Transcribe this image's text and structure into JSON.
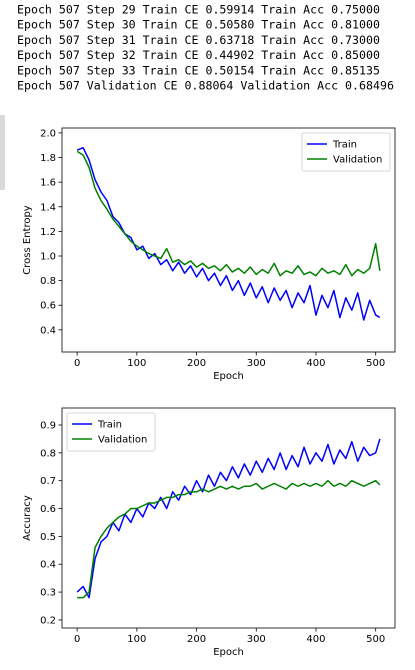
{
  "log_lines": [
    "Epoch 507 Step 29 Train CE 0.59914 Train Acc 0.75000",
    "Epoch 507 Step 30 Train CE 0.50580 Train Acc 0.81000",
    "Epoch 507 Step 31 Train CE 0.63718 Train Acc 0.73000",
    "Epoch 507 Step 32 Train CE 0.44902 Train Acc 0.85000",
    "Epoch 507 Step 33 Train CE 0.50154 Train Acc 0.85135",
    "Epoch 507 Validation CE 0.88064 Validation Acc 0.68496"
  ],
  "chart_data": [
    {
      "type": "line",
      "xlabel": "Epoch",
      "ylabel": "Cross Entropy",
      "legend": "upper right",
      "x": [
        0,
        10,
        20,
        30,
        40,
        50,
        60,
        70,
        80,
        90,
        100,
        110,
        120,
        130,
        140,
        150,
        160,
        170,
        180,
        190,
        200,
        210,
        220,
        230,
        240,
        250,
        260,
        270,
        280,
        290,
        300,
        310,
        320,
        330,
        340,
        350,
        360,
        370,
        380,
        390,
        400,
        410,
        420,
        430,
        440,
        450,
        460,
        470,
        480,
        490,
        500,
        507
      ],
      "series": [
        {
          "name": "Train",
          "color": "#0000ff",
          "values": [
            1.86,
            1.88,
            1.78,
            1.62,
            1.52,
            1.45,
            1.32,
            1.27,
            1.18,
            1.15,
            1.05,
            1.08,
            0.98,
            1.02,
            0.93,
            0.97,
            0.88,
            0.95,
            0.86,
            0.92,
            0.83,
            0.9,
            0.8,
            0.86,
            0.76,
            0.84,
            0.72,
            0.8,
            0.68,
            0.78,
            0.66,
            0.75,
            0.62,
            0.74,
            0.64,
            0.72,
            0.58,
            0.7,
            0.62,
            0.76,
            0.52,
            0.68,
            0.58,
            0.72,
            0.5,
            0.66,
            0.56,
            0.7,
            0.48,
            0.64,
            0.52,
            0.5
          ]
        },
        {
          "name": "Validation",
          "color": "#008000",
          "values": [
            1.85,
            1.82,
            1.72,
            1.55,
            1.45,
            1.38,
            1.3,
            1.24,
            1.18,
            1.12,
            1.08,
            1.05,
            1.02,
            1.0,
            0.98,
            1.06,
            0.95,
            0.97,
            0.93,
            0.96,
            0.91,
            0.94,
            0.9,
            0.92,
            0.88,
            0.93,
            0.87,
            0.9,
            0.86,
            0.91,
            0.85,
            0.89,
            0.86,
            0.94,
            0.84,
            0.88,
            0.86,
            0.92,
            0.85,
            0.87,
            0.84,
            0.9,
            0.86,
            0.88,
            0.85,
            0.93,
            0.84,
            0.89,
            0.86,
            0.9,
            1.1,
            0.88
          ]
        }
      ],
      "xlim": [
        -25.35,
        532.35
      ],
      "xticks": [
        0,
        100,
        200,
        300,
        400,
        500
      ],
      "ylim": [
        0.22,
        2.04
      ],
      "yticks": [
        0.4,
        0.6,
        0.8,
        {
          "value": 1.0,
          "label": "1.0"
        },
        1.2,
        1.4,
        1.6,
        1.8,
        {
          "value": 2.0,
          "label": "2.0"
        }
      ]
    },
    {
      "type": "line",
      "xlabel": "Epoch",
      "ylabel": "Accuracy",
      "legend": "upper left",
      "x": [
        0,
        10,
        20,
        30,
        40,
        50,
        60,
        70,
        80,
        90,
        100,
        110,
        120,
        130,
        140,
        150,
        160,
        170,
        180,
        190,
        200,
        210,
        220,
        230,
        240,
        250,
        260,
        270,
        280,
        290,
        300,
        310,
        320,
        330,
        340,
        350,
        360,
        370,
        380,
        390,
        400,
        410,
        420,
        430,
        440,
        450,
        460,
        470,
        480,
        490,
        500,
        507
      ],
      "series": [
        {
          "name": "Train",
          "color": "#0000ff",
          "values": [
            0.3,
            0.32,
            0.28,
            0.42,
            0.48,
            0.5,
            0.55,
            0.52,
            0.58,
            0.55,
            0.6,
            0.57,
            0.62,
            0.6,
            0.64,
            0.6,
            0.66,
            0.63,
            0.68,
            0.65,
            0.7,
            0.66,
            0.72,
            0.68,
            0.73,
            0.7,
            0.75,
            0.71,
            0.76,
            0.72,
            0.77,
            0.73,
            0.78,
            0.74,
            0.8,
            0.74,
            0.79,
            0.75,
            0.82,
            0.76,
            0.8,
            0.77,
            0.83,
            0.76,
            0.81,
            0.78,
            0.84,
            0.77,
            0.82,
            0.79,
            0.8,
            0.85
          ]
        },
        {
          "name": "Validation",
          "color": "#008000",
          "values": [
            0.28,
            0.28,
            0.3,
            0.46,
            0.5,
            0.53,
            0.55,
            0.57,
            0.58,
            0.6,
            0.6,
            0.61,
            0.62,
            0.62,
            0.63,
            0.64,
            0.64,
            0.65,
            0.65,
            0.66,
            0.66,
            0.67,
            0.66,
            0.67,
            0.68,
            0.67,
            0.68,
            0.67,
            0.68,
            0.68,
            0.69,
            0.67,
            0.68,
            0.69,
            0.68,
            0.67,
            0.69,
            0.68,
            0.69,
            0.68,
            0.69,
            0.68,
            0.7,
            0.68,
            0.69,
            0.68,
            0.7,
            0.69,
            0.68,
            0.69,
            0.7,
            0.685
          ]
        }
      ],
      "xlim": [
        -25.35,
        532.35
      ],
      "xticks": [
        0,
        100,
        200,
        300,
        400,
        500
      ],
      "ylim": [
        0.171,
        0.961
      ],
      "yticks": [
        0.2,
        0.3,
        0.4,
        0.5,
        0.6,
        0.7,
        0.8,
        0.9
      ]
    }
  ]
}
